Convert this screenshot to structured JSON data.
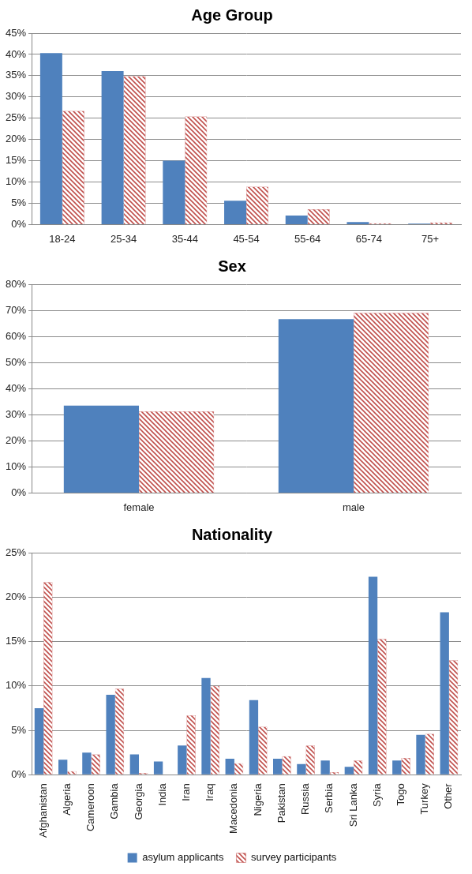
{
  "chart_data": [
    {
      "type": "bar",
      "title": "Age Group",
      "categories": [
        "18-24",
        "25-34",
        "35-44",
        "45-54",
        "55-64",
        "65-74",
        "75+"
      ],
      "series": [
        {
          "name": "asylum applicants",
          "color": "#4f81bd",
          "values": [
            40.3,
            36.1,
            15.0,
            5.6,
            2.1,
            0.6,
            0.2
          ]
        },
        {
          "name": "survey participants",
          "color": "#c0504d",
          "values": [
            26.7,
            34.9,
            25.4,
            8.9,
            3.6,
            0.3,
            0.5
          ]
        }
      ],
      "ylim": [
        0,
        45
      ],
      "yticks": [
        {
          "value": 0,
          "label": "0%"
        },
        {
          "value": 5,
          "label": "5%"
        },
        {
          "value": 10,
          "label": "10%"
        },
        {
          "value": 15,
          "label": "15%"
        },
        {
          "value": 20,
          "label": "20%"
        },
        {
          "value": 25,
          "label": "25%"
        },
        {
          "value": 30,
          "label": "30%"
        },
        {
          "value": 35,
          "label": "35%"
        },
        {
          "value": 40,
          "label": "40%"
        },
        {
          "value": 45,
          "label": "45%"
        }
      ],
      "grid": true
    },
    {
      "type": "bar",
      "title": "Sex",
      "categories": [
        "female",
        "male"
      ],
      "series": [
        {
          "name": "asylum applicants",
          "color": "#4f81bd",
          "values": [
            33.5,
            66.6
          ]
        },
        {
          "name": "survey participants",
          "color": "#c0504d",
          "values": [
            31.3,
            69.0
          ]
        }
      ],
      "ylim": [
        0,
        80
      ],
      "yticks": [
        {
          "value": 0,
          "label": "0%"
        },
        {
          "value": 10,
          "label": "10%"
        },
        {
          "value": 20,
          "label": "20%"
        },
        {
          "value": 30,
          "label": "30%"
        },
        {
          "value": 40,
          "label": "40%"
        },
        {
          "value": 50,
          "label": "50%"
        },
        {
          "value": 60,
          "label": "60%"
        },
        {
          "value": 70,
          "label": "70%"
        },
        {
          "value": 80,
          "label": "80%"
        }
      ],
      "grid": true
    },
    {
      "type": "bar",
      "title": "Nationality",
      "categories": [
        "Afghanistan",
        "Algeria",
        "Cameroon",
        "Gambia",
        "Georgia",
        "India",
        "Iran",
        "Iraq",
        "Macedonia",
        "Nigeria",
        "Pakistan",
        "Russia",
        "Serbia",
        "Sri Lanka",
        "Syria",
        "Togo",
        "Turkey",
        "Other"
      ],
      "series": [
        {
          "name": "asylum applicants",
          "color": "#4f81bd",
          "values": [
            7.5,
            1.7,
            2.5,
            9.0,
            2.3,
            1.5,
            3.3,
            10.9,
            1.8,
            8.4,
            1.8,
            1.2,
            1.6,
            0.9,
            22.3,
            1.6,
            4.5,
            18.3
          ]
        },
        {
          "name": "survey participants",
          "color": "#c0504d",
          "values": [
            21.7,
            0.4,
            2.3,
            9.7,
            0.2,
            0,
            6.7,
            10.0,
            1.3,
            5.4,
            2.1,
            3.3,
            0.3,
            1.6,
            15.3,
            1.9,
            4.6,
            12.9
          ]
        }
      ],
      "ylim": [
        0,
        25
      ],
      "yticks": [
        {
          "value": 0,
          "label": "0%"
        },
        {
          "value": 5,
          "label": "5%"
        },
        {
          "value": 10,
          "label": "10%"
        },
        {
          "value": 15,
          "label": "15%"
        },
        {
          "value": 20,
          "label": "20%"
        },
        {
          "value": 25,
          "label": "25%"
        }
      ],
      "grid": true,
      "legend": "bottom"
    }
  ]
}
